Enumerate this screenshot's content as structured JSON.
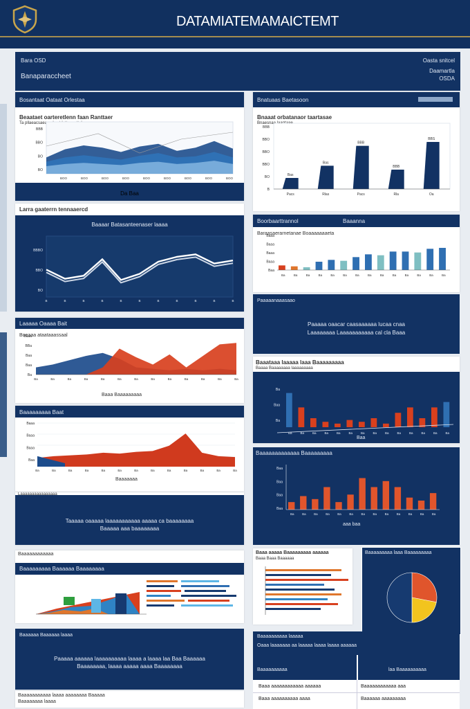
{
  "header": {
    "title": "DATAMIATEMAMAICTEMT"
  },
  "subheader": {
    "left_top": "Bara OSD",
    "left_title": "Banaparaccheet",
    "right_top": "Oasta snitcel",
    "right_line1": "Daamartla",
    "right_line2": "OSDA"
  },
  "panels": {
    "p1": {
      "header": "Bosantaat Oataat Orlestaa",
      "title": "Beaataet oarteretlenn faan Ranttaer",
      "subtitle": "Ta pllaeacsaeaae lerst lattaaenttol",
      "footer": "Da Baa"
    },
    "p2": {
      "header": "Bnatuaas Baetasoon",
      "title": "Bnaaat orbatanaor taartasae",
      "subtitle": "Bnaesnaa laantaae"
    },
    "p3": {
      "header": "Larra gaaterrn tennaaercd",
      "title": "Baaaar Batasanteenaser laaaa"
    },
    "p4": {
      "header": "Boorbaarttrannol",
      "badge": "Baaanna",
      "title": "Baraasaerarnetanae Boaaaaaaaeta"
    },
    "p5": {
      "header": "Laaaaa Oaaaa Bait",
      "title": "Boeaaa ataataaassaal",
      "footer": "Baaa Baaaaaaaaa"
    },
    "p6": {
      "header": "Paaaaanaaasaao",
      "text1": "Paaaaa oaacar caasaaaaaa lucaa cnaa",
      "text2": "Laaaaaaaa Laaaaaaaaaaa cal cla Baaa"
    },
    "p7": {
      "header": "Baaaaaaaaa Baat",
      "footer": "Baaaaaaa"
    },
    "p8": {
      "title": "Baaataaa laaaaa laaa Baaaaaaaaa",
      "subtitle": "Baaaa Baaaaaaaa laaaaaaaaa",
      "footer": "Baa"
    },
    "p9": {
      "label": "Laaaaaaaaaaaaaaaa",
      "text1": "Taaaaa oaaaaa laaaaaaaaaaa aaaaa ca baaaaaaaa",
      "text2": "Baaaaa aaa baaaaaaaa"
    },
    "p10": {
      "header": "Baaaaaaaaaaaaa Baaaaaaaaa",
      "footer": "aaa baa"
    },
    "p11": {
      "label": "Baaaaaaaaaaaa",
      "header": "Baaaaaaaaa Baaaaaa Baaaaaaaa"
    },
    "p12": {
      "title": "Baaa aaaaa Baaaaaaaaa aaaaaa",
      "subtitle": "Baaa Baaa Baaaaaa"
    },
    "p13": {
      "title": "Baaaaaaaaa laaa Baaaaaaaaa"
    },
    "p14": {
      "header": "Baaaaaa Baaaaaa laaaa",
      "text1": "Paaaaa aaaaaa laaaaaaaaaa laaaa a laaaa laa Baa Baaaaaa",
      "text2": "Baaaaaaaa, laaaa aaaaa aaaa Baaaaaaaa"
    },
    "p15": {
      "header": "Baaaaaaaaaa laaaaa",
      "line": "Oaaa laaaaaaa aa laaaaa laaaa laaaa aaaaaa"
    },
    "p16": {
      "cells": [
        "Baaaaaaaaaa",
        "laa Baaaaaaaaaa",
        "Baaa aaaaaaaaaaaa aaaaaa",
        "Baaaaaaaaaaaa aaa",
        "Baaa aaaaaaaaaa aaaa",
        "Baaaaaa aaaaaaaaa"
      ]
    },
    "p17": {
      "line1": "Baaaaaaaaaaa laaaa aaaaaaaa Baaaaa",
      "line2": "Baaaaaaaa laaaa"
    }
  },
  "chart_data": [
    {
      "type": "area",
      "title": "Beaataet oarteretlenn faan Ranttaer",
      "x": [
        0,
        1,
        2,
        3,
        4,
        5,
        6,
        7,
        8,
        9,
        10
      ],
      "series": [
        {
          "name": "s1",
          "values": [
            30,
            45,
            52,
            48,
            40,
            50,
            55,
            42,
            48,
            60,
            46
          ]
        },
        {
          "name": "s2",
          "values": [
            22,
            30,
            34,
            30,
            26,
            33,
            38,
            30,
            32,
            40,
            30
          ]
        },
        {
          "name": "s3",
          "values": [
            14,
            18,
            20,
            18,
            16,
            20,
            22,
            18,
            20,
            24,
            18
          ]
        }
      ],
      "yticks": [
        "BBB",
        "BBO",
        "BO",
        "BO"
      ],
      "xticks": [
        "BOO",
        "BOO",
        "BOO",
        "BOO",
        "BOO",
        "BOO",
        "BOO",
        "BOO",
        "BOO"
      ],
      "ylim": [
        0,
        80
      ]
    },
    {
      "type": "bar",
      "title": "Bnaaat orbatanaor taartasae",
      "categories": [
        "Pacs",
        "Rlas",
        "Pacs",
        "Rla",
        "Oa"
      ],
      "values": [
        20,
        42,
        78,
        35,
        85
      ],
      "data_labels": [
        "Bas",
        "Bas",
        "BBB",
        "BBB",
        "BBS"
      ],
      "yticks": [
        "BBB",
        "BBO",
        "BBO",
        "BBO",
        "BO",
        "B"
      ],
      "ylim": [
        0,
        100
      ]
    },
    {
      "type": "line",
      "title": "Baaaaar Batasanteenaser laaaa",
      "x": [
        0,
        1,
        2,
        3,
        4,
        5,
        6,
        7,
        8,
        9,
        10
      ],
      "values": [
        45,
        30,
        35,
        62,
        28,
        38,
        58,
        66,
        70,
        55,
        60
      ],
      "yticks": [
        "BBBO",
        "BBO",
        "BO"
      ],
      "ylim": [
        0,
        100
      ]
    },
    {
      "type": "bar",
      "title": "Baraasaerarnetanae Boaaaaaaaeta",
      "categories": [
        "a",
        "b",
        "c",
        "d",
        "e",
        "f",
        "g",
        "h",
        "i",
        "j",
        "k",
        "l",
        "m",
        "n"
      ],
      "values": [
        10,
        8,
        6,
        18,
        22,
        20,
        28,
        34,
        32,
        40,
        40,
        38,
        46,
        48
      ],
      "yticks": [
        "Baaa",
        "Baaa",
        "Baaa",
        "Baaa",
        "Baa"
      ],
      "ylim": [
        0,
        60
      ]
    },
    {
      "type": "area",
      "title": "Boeaaa ataataaassaal",
      "x": [
        0,
        1,
        2,
        3,
        4,
        5,
        6,
        7,
        8,
        9,
        10,
        11,
        12
      ],
      "series": [
        {
          "name": "blue",
          "values": [
            10,
            14,
            20,
            26,
            30,
            22,
            10,
            8,
            6,
            8,
            6,
            8,
            6
          ]
        },
        {
          "name": "red",
          "values": [
            0,
            0,
            0,
            0,
            10,
            36,
            24,
            14,
            28,
            10,
            26,
            42,
            44
          ]
        }
      ],
      "yticks": [
        "Baaa",
        "BBa",
        "Baa",
        "Baa",
        "Ba"
      ],
      "ylim": [
        0,
        50
      ]
    },
    {
      "type": "area",
      "title": "Baaaaaaaaa Baat",
      "x": [
        0,
        1,
        2,
        3,
        4,
        5,
        6,
        7,
        8,
        9,
        10,
        11,
        12
      ],
      "values": [
        10,
        12,
        13,
        14,
        16,
        15,
        17,
        18,
        24,
        38,
        16,
        12,
        11
      ],
      "yticks": [
        "Baaa",
        "Baaa",
        "Baaa",
        "Baa"
      ],
      "ylim": [
        0,
        50
      ]
    },
    {
      "type": "bar",
      "title": "Baaataaa laaaaa laaa Baaaaaaaaa",
      "categories": [
        "a",
        "b",
        "c",
        "d",
        "e",
        "f",
        "g",
        "h",
        "i",
        "j",
        "k",
        "l",
        "m",
        "n"
      ],
      "values": [
        38,
        22,
        10,
        6,
        4,
        8,
        6,
        10,
        4,
        16,
        22,
        10,
        22,
        28
      ],
      "yticks": [
        "Ba",
        "Baa",
        "Ba"
      ],
      "ylim": [
        0,
        50
      ]
    },
    {
      "type": "bar",
      "title": "Baaaaaaaaaaaaa Baaaaaaaaa",
      "categories": [
        "a",
        "b",
        "c",
        "d",
        "e",
        "f",
        "g",
        "h",
        "i",
        "j",
        "k",
        "l",
        "m"
      ],
      "values": [
        10,
        18,
        14,
        30,
        10,
        20,
        42,
        30,
        38,
        30,
        16,
        12,
        22
      ],
      "yticks": [
        "Baa",
        "Baa",
        "Baa",
        "Baa"
      ],
      "ylim": [
        0,
        60
      ]
    },
    {
      "type": "pie",
      "title": "Baaa aaaaa Baaaaaaaaa aaaaaa",
      "categories": [
        "Red",
        "Yellow",
        "Navy"
      ],
      "values": [
        28,
        22,
        50
      ]
    }
  ]
}
